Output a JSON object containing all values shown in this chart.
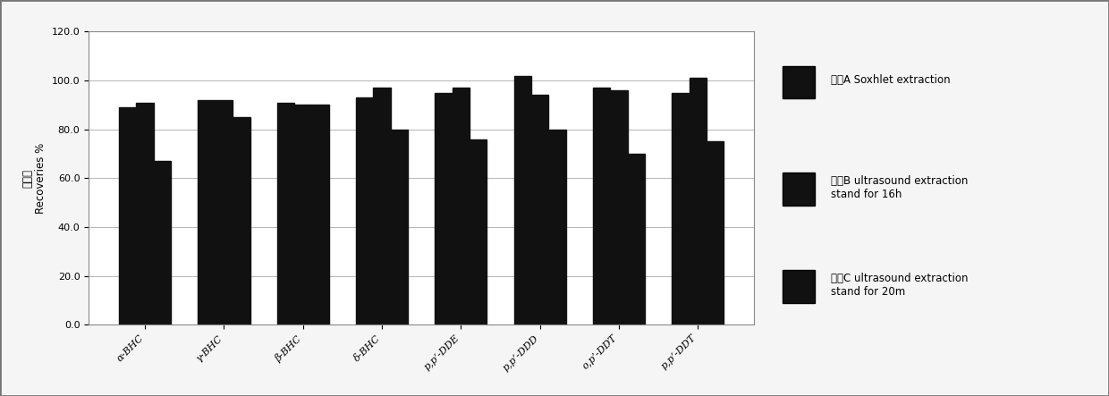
{
  "categories": [
    "α-BHC",
    "γ-BHC",
    "β-BHC",
    "δ-BHC",
    "p,p’-DDE",
    "p,p’-DDD",
    "o,p’-DDT",
    "p,p’-DDT"
  ],
  "series": [
    {
      "label": "提取A Soxhlet extraction",
      "values": [
        89,
        92,
        91,
        93,
        95,
        102,
        97,
        95
      ]
    },
    {
      "label": "提取B ultrasound extraction\nstand for 16h",
      "values": [
        91,
        92,
        90,
        97,
        97,
        94,
        96,
        101
      ]
    },
    {
      "label": "提取C ultrasound extraction\nstand for 20m",
      "values": [
        67,
        85,
        90,
        80,
        76,
        80,
        70,
        75
      ]
    }
  ],
  "bar_color": "#111111",
  "ylabel_cn": "回收率",
  "ylabel_en": "Recoveries %",
  "ylim": [
    0,
    120
  ],
  "yticks": [
    0.0,
    20.0,
    40.0,
    60.0,
    80.0,
    100.0,
    120.0
  ],
  "ytick_labels": [
    "0.0",
    "20.0",
    "40.0",
    "60.0",
    "80.0",
    "100.0",
    "120.0"
  ],
  "background_color": "#f5f5f5",
  "plot_bg_color": "#ffffff",
  "bar_width": 0.22,
  "legend_fontsize": 8.5,
  "axis_fontsize": 8.5,
  "tick_fontsize": 8,
  "border_color": "#888888"
}
